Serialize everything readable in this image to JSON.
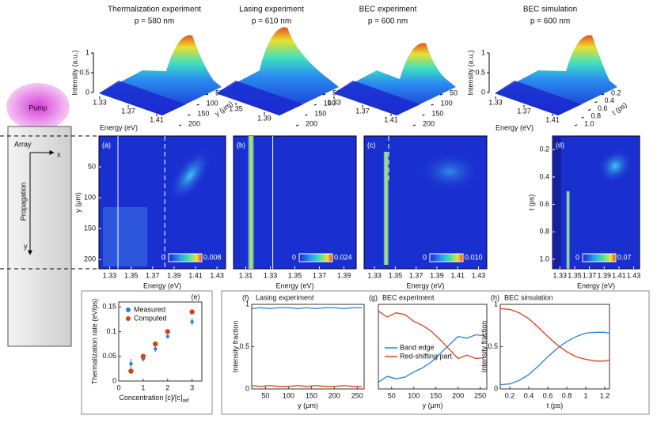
{
  "figure": {
    "schematic": {
      "pump": "Pump",
      "array": "Array",
      "x": "x",
      "y": "y",
      "propagation": "Propagation"
    },
    "columns": [
      {
        "title": "Thermalization experiment",
        "subtitle": "p = 580 nm"
      },
      {
        "title": "Lasing experiment",
        "subtitle": "p = 610 nm"
      },
      {
        "title": "BEC experiment",
        "subtitle": "p = 600 nm"
      },
      {
        "title": "BEC simulation",
        "subtitle": "p = 600 nm"
      }
    ],
    "surfaces": [
      {
        "zlabel": "Intensity (a.u.)",
        "zticks": [
          0,
          0.5,
          1
        ],
        "xlabel": "Energy (eV)",
        "xticks": [
          1.33,
          1.37,
          1.41
        ],
        "ylabel": "y (μm)",
        "yticks": [
          50,
          100,
          150,
          200
        ]
      },
      {
        "xticks": [
          1.35,
          1.39
        ],
        "yticks": [
          50,
          100,
          150,
          200
        ]
      },
      {
        "xticks": [
          1.33,
          1.37,
          1.41
        ],
        "yticks": [
          50,
          100,
          150,
          200
        ]
      },
      {
        "zlabel": "Intensity (a.u.)",
        "zticks": [
          0,
          0.5,
          1
        ],
        "xlabel": "Energy (eV)",
        "xticks": [
          1.33,
          1.37,
          1.41
        ],
        "ylabel": "t (ps)",
        "yticks": [
          0.2,
          0.4,
          0.6,
          0.8,
          {
            "value": 1,
            "label": "1.0"
          }
        ]
      }
    ],
    "heatmaps": [
      {
        "label": "(a)",
        "xlabel": "Energy (eV)",
        "xticks": [
          1.33,
          1.35,
          1.37,
          1.39,
          1.41,
          1.43
        ],
        "xlim": [
          1.32,
          1.438
        ],
        "ylabel": "y (μm)",
        "yticks": [
          50,
          100,
          150,
          200
        ],
        "ylim": [
          0,
          215
        ],
        "colorbar": [
          "0",
          "0.008"
        ]
      },
      {
        "label": "(b)",
        "xlabel": "Energy (eV)",
        "xticks": [
          1.31,
          1.33,
          1.35,
          1.37,
          1.39
        ],
        "xlim": [
          1.3,
          1.4
        ],
        "colorbar": [
          "0",
          "0.024"
        ]
      },
      {
        "label": "(c)",
        "xlabel": "Energy (eV)",
        "xticks": [
          1.33,
          1.35,
          1.37,
          1.39,
          1.41,
          1.43
        ],
        "xlim": [
          1.32,
          1.438
        ],
        "colorbar": [
          "0",
          "0.010"
        ]
      },
      {
        "label": "(d)",
        "xlabel": "Energy (eV)",
        "xticks": [
          1.33,
          1.35,
          1.37,
          1.39,
          1.41,
          1.43
        ],
        "xlim": [
          1.32,
          1.438
        ],
        "ylabel": "t (ps)",
        "yticks": [
          0.2,
          0.4,
          0.6,
          0.8,
          {
            "value": 1,
            "label": "1.0"
          }
        ],
        "ylim": [
          0.1,
          1.07
        ],
        "colorbar": [
          "0",
          "0.07"
        ]
      }
    ]
  },
  "chart_data": [
    {
      "type": "scatter",
      "label": "(e)",
      "ylabel": "Thermalization rate (eV/ps)",
      "xlabel": "Concentration [c]/[c]",
      "xlabel_sub": "ref",
      "x": [
        0.5,
        1,
        1.5,
        2,
        3
      ],
      "xlim": [
        0,
        3.4
      ],
      "xticks": [
        0,
        1,
        2,
        3
      ],
      "ylim": [
        0,
        0.16
      ],
      "yticks": [
        0,
        0.05,
        0.1,
        0.15
      ],
      "series": [
        {
          "name": "Measured",
          "color": "#2a7fd4",
          "values": [
            0.035,
            0.045,
            0.065,
            0.09,
            0.12
          ],
          "errors": [
            0.01,
            0.006,
            0.006,
            0.004,
            0.007
          ]
        },
        {
          "name": "Computed",
          "color": "#d9401a",
          "values": [
            0.02,
            0.05,
            0.075,
            0.1,
            0.14
          ]
        }
      ]
    },
    {
      "type": "line",
      "label": "(f)",
      "title": "Lasing experiment",
      "ylabel": "Intensity fraction",
      "xlabel": "y (μm)",
      "x": [
        20,
        40,
        60,
        80,
        100,
        120,
        140,
        160,
        180,
        200,
        220,
        240,
        260
      ],
      "xlim": [
        20,
        265
      ],
      "xticks": [
        50,
        100,
        150,
        200,
        250
      ],
      "ylim": [
        0,
        1
      ],
      "yticks": [
        0,
        0.5,
        1
      ],
      "series": [
        {
          "color": "#2a7fd4",
          "values": [
            0.95,
            0.96,
            0.95,
            0.96,
            0.96,
            0.95,
            0.96,
            0.95,
            0.96,
            0.96,
            0.95,
            0.96,
            0.96
          ]
        },
        {
          "color": "#d9401a",
          "values": [
            0.04,
            0.03,
            0.04,
            0.03,
            0.03,
            0.04,
            0.03,
            0.04,
            0.03,
            0.03,
            0.04,
            0.03,
            0.03
          ]
        }
      ]
    },
    {
      "type": "line",
      "label": "(g)",
      "title": "BEC experiment",
      "xlabel": "y (μm)",
      "x": [
        20,
        40,
        60,
        80,
        100,
        120,
        140,
        160,
        180,
        200,
        220,
        240,
        260
      ],
      "xlim": [
        20,
        265
      ],
      "xticks": [
        50,
        100,
        150,
        200,
        250
      ],
      "ylim": [
        0,
        1
      ],
      "series": [
        {
          "name": "Band edge",
          "color": "#2a7fd4",
          "values": [
            0.08,
            0.15,
            0.12,
            0.14,
            0.2,
            0.25,
            0.32,
            0.42,
            0.52,
            0.62,
            0.6,
            0.64,
            0.63
          ]
        },
        {
          "name": "Red-shifting part",
          "color": "#d9401a",
          "values": [
            0.92,
            0.85,
            0.9,
            0.88,
            0.8,
            0.75,
            0.68,
            0.58,
            0.47,
            0.36,
            0.4,
            0.36,
            0.37
          ]
        }
      ]
    },
    {
      "type": "line",
      "label": "(h)",
      "title": "BEC simulation",
      "ylabel": "Intensity fraction",
      "xlabel": "t (ps)",
      "x": [
        0.1,
        0.2,
        0.3,
        0.4,
        0.5,
        0.6,
        0.7,
        0.8,
        0.9,
        1.0,
        1.1,
        1.2,
        1.25
      ],
      "xlim": [
        0.1,
        1.25
      ],
      "xticks": [
        0.2,
        0.4,
        0.6,
        0.8,
        1,
        1.2
      ],
      "ylim": [
        0,
        1
      ],
      "yticks": [
        0,
        0.5,
        1
      ],
      "series": [
        {
          "color": "#2a7fd4",
          "values": [
            0.05,
            0.06,
            0.1,
            0.17,
            0.27,
            0.38,
            0.48,
            0.56,
            0.62,
            0.66,
            0.67,
            0.67,
            0.66
          ]
        },
        {
          "color": "#d9401a",
          "values": [
            0.95,
            0.94,
            0.9,
            0.83,
            0.73,
            0.62,
            0.52,
            0.44,
            0.38,
            0.35,
            0.33,
            0.33,
            0.34
          ]
        }
      ]
    }
  ]
}
